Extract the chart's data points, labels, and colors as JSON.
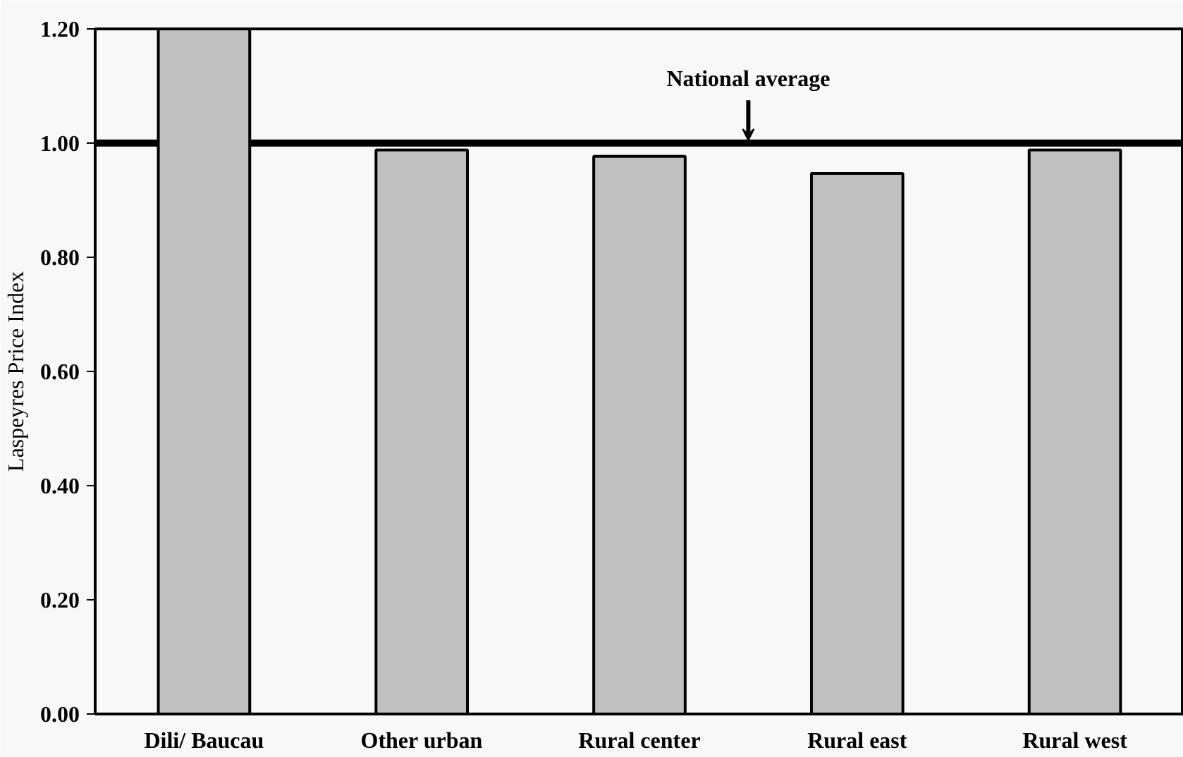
{
  "chart_data": {
    "type": "bar",
    "ylabel": "Laspeyres Price Index",
    "categories": [
      "Dili/ Baucau",
      "Other urban",
      "Rural center",
      "Rural east",
      "Rural west"
    ],
    "values": [
      1.2,
      0.988,
      0.977,
      0.947,
      0.988
    ],
    "color": "#c0c0c0",
    "ylim": [
      0,
      1.2
    ],
    "yticks": [
      {
        "value": 0,
        "label": "0.00"
      },
      {
        "value": 0.2,
        "label": "0.20"
      },
      {
        "value": 0.4,
        "label": "0.40"
      },
      {
        "value": 0.6,
        "label": "0.60"
      },
      {
        "value": 0.8,
        "label": "0.80"
      },
      {
        "value": 1.0,
        "label": "1.00"
      },
      {
        "value": 1.2,
        "label": "1.20"
      }
    ],
    "ref_lines": [
      {
        "axis": "y",
        "value": 1.0,
        "label": "National average",
        "color": "#000000"
      }
    ],
    "grid": false
  }
}
